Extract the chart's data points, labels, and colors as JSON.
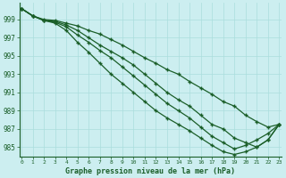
{
  "xlabel": "Graphe pression niveau de la mer (hPa)",
  "bg_color": "#cceef0",
  "grid_color": "#aadddd",
  "line_color": "#1a5e28",
  "marker_color": "#1a5e28",
  "ylim": [
    984.0,
    1000.8
  ],
  "xlim": [
    -0.2,
    23.2
  ],
  "yticks": [
    985,
    987,
    989,
    991,
    993,
    995,
    997,
    999
  ],
  "xticks": [
    0,
    1,
    2,
    3,
    4,
    5,
    6,
    7,
    8,
    9,
    10,
    11,
    12,
    13,
    14,
    15,
    16,
    17,
    18,
    19,
    20,
    21,
    22,
    23
  ],
  "lines": [
    [
      1000.2,
      999.4,
      999.0,
      998.9,
      998.6,
      998.3,
      997.8,
      997.4,
      996.8,
      996.2,
      995.5,
      994.8,
      994.2,
      993.5,
      993.0,
      992.2,
      991.5,
      990.8,
      990.0,
      989.5,
      988.5,
      987.8,
      987.2,
      987.5
    ],
    [
      1000.2,
      999.4,
      998.9,
      998.8,
      998.4,
      997.8,
      997.0,
      996.2,
      995.5,
      994.8,
      994.0,
      993.0,
      992.0,
      991.0,
      990.2,
      989.5,
      988.5,
      987.5,
      987.0,
      986.0,
      985.5,
      985.0,
      985.8,
      987.5
    ],
    [
      1000.2,
      999.4,
      998.9,
      998.7,
      998.2,
      997.3,
      996.5,
      995.6,
      994.8,
      993.8,
      992.8,
      991.8,
      990.8,
      989.8,
      989.0,
      988.2,
      987.2,
      986.2,
      985.5,
      984.8,
      985.2,
      985.8,
      986.5,
      987.5
    ],
    [
      1000.2,
      999.4,
      998.9,
      998.6,
      997.8,
      996.5,
      995.4,
      994.2,
      993.0,
      992.0,
      991.0,
      990.0,
      989.0,
      988.2,
      987.5,
      986.8,
      986.0,
      985.2,
      984.5,
      984.2,
      984.5,
      985.0,
      985.8,
      987.5
    ]
  ]
}
